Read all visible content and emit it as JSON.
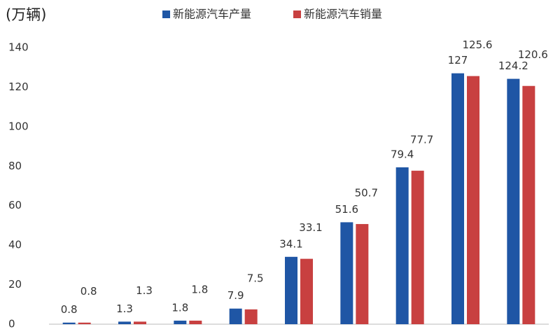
{
  "chart_data": {
    "type": "bar",
    "y_label": "(万辆)",
    "categories": [
      null,
      null,
      null,
      null,
      null,
      null,
      null,
      null,
      null
    ],
    "series": [
      {
        "name": "新能源汽车产量",
        "color": "#1f56a5",
        "values": [
          0.8,
          1.3,
          1.8,
          7.9,
          34.1,
          51.6,
          79.4,
          127,
          124.2
        ]
      },
      {
        "name": "新能源汽车销量",
        "color": "#c84040",
        "values": [
          0.8,
          1.3,
          1.8,
          7.5,
          33.1,
          50.7,
          77.7,
          125.6,
          120.6
        ]
      }
    ],
    "ylim": [
      0,
      140
    ],
    "yticks": [
      0,
      20,
      40,
      60,
      80,
      100,
      120,
      140
    ],
    "grid": false,
    "legend": "top"
  }
}
